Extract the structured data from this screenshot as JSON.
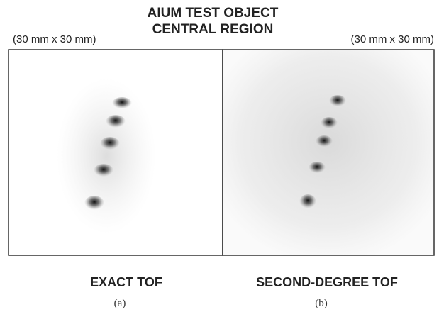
{
  "figure": {
    "title": [
      "AIUM TEST OBJECT",
      "CENTRAL REGION"
    ],
    "panels": [
      {
        "size_label": "(30 mm x 30 mm)",
        "caption": "EXACT TOF",
        "label": "(a)"
      },
      {
        "size_label": "(30 mm x 30 mm)",
        "caption": "SECOND-DEGREE TOF",
        "label": "(b)"
      }
    ]
  }
}
